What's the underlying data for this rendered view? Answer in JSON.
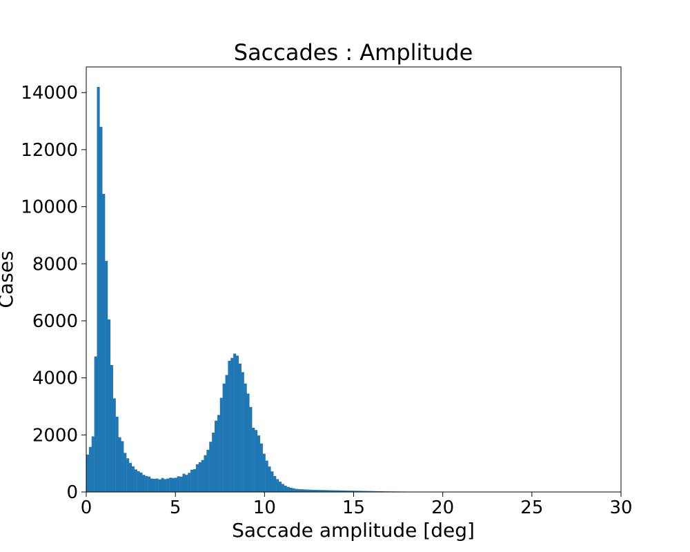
{
  "chart_data": {
    "type": "bar",
    "title": "Saccades : Amplitude",
    "xlabel": "Saccade amplitude [deg]",
    "ylabel": "Cases",
    "xlim": [
      0,
      30
    ],
    "ylim": [
      0,
      14900
    ],
    "xticks": [
      0,
      5,
      10,
      15,
      20,
      25,
      30
    ],
    "xtick_labels": [
      "0",
      "5",
      "10",
      "15",
      "20",
      "25",
      "30"
    ],
    "yticks": [
      0,
      2000,
      4000,
      6000,
      8000,
      10000,
      12000,
      14000
    ],
    "ytick_labels": [
      "0",
      "2000",
      "4000",
      "6000",
      "8000",
      "10000",
      "12000",
      "14000"
    ],
    "grid": false,
    "bar_color": "#1f77b4",
    "bin_width": 0.15,
    "bin_start": 0,
    "values": [
      1310,
      1580,
      1950,
      4750,
      14200,
      12800,
      10450,
      8100,
      6050,
      4450,
      3280,
      2640,
      1920,
      1780,
      1370,
      1180,
      1020,
      900,
      790,
      730,
      680,
      600,
      560,
      540,
      470,
      460,
      470,
      440,
      490,
      450,
      470,
      500,
      490,
      500,
      550,
      540,
      640,
      600,
      670,
      780,
      800,
      970,
      1040,
      1120,
      1290,
      1480,
      1760,
      2080,
      2500,
      2700,
      3300,
      3800,
      4100,
      4600,
      4700,
      4850,
      4780,
      4500,
      4200,
      3800,
      3450,
      2980,
      2250,
      2170,
      1980,
      1700,
      1340,
      1100,
      890,
      720,
      560,
      450,
      360,
      280,
      220,
      180,
      150,
      130,
      110,
      100,
      95,
      90,
      85,
      80,
      78,
      75,
      72,
      70,
      68,
      66,
      64,
      62,
      60,
      58,
      56,
      54,
      52,
      50,
      48,
      46,
      44,
      42,
      40,
      38,
      36,
      34,
      32,
      30,
      28,
      26,
      24,
      22,
      20,
      19,
      18,
      17,
      16,
      15,
      14,
      13,
      12,
      11,
      10,
      10,
      9,
      9,
      8,
      8,
      7,
      7,
      6,
      6,
      5,
      5,
      5,
      4,
      4,
      4,
      3,
      3,
      3,
      2,
      2,
      2,
      2,
      1,
      1,
      1,
      1,
      1,
      1,
      1,
      0,
      0,
      0,
      0,
      0,
      0,
      0,
      0,
      0,
      0,
      0,
      0,
      0,
      0,
      0,
      0,
      0,
      0,
      0,
      0,
      0,
      0,
      0,
      0,
      0,
      0,
      0,
      0,
      0,
      0,
      0,
      0,
      0,
      0,
      0,
      0,
      0,
      0,
      0,
      0,
      0,
      0,
      0,
      0,
      0,
      0,
      0,
      0,
      0,
      0,
      0,
      0,
      0,
      0
    ]
  }
}
